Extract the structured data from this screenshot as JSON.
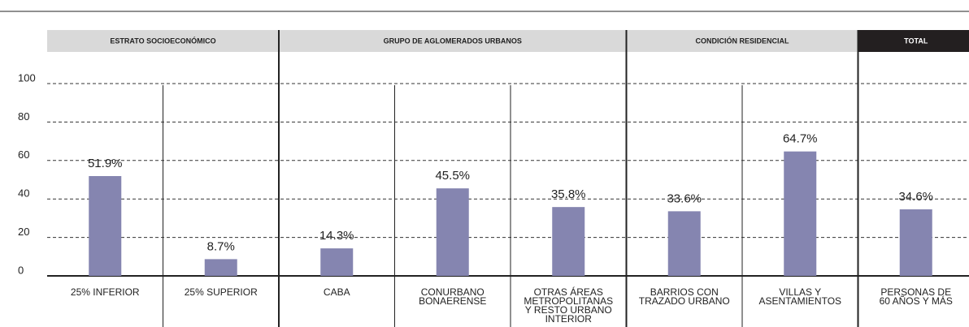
{
  "chart_data": {
    "type": "bar",
    "groups": [
      {
        "name": "ESTRATO SOCIOECONÓMICO",
        "header_color": "#d9d9d9",
        "header_text_color": "#222222",
        "categories": [
          "25% INFERIOR",
          "25% SUPERIOR"
        ],
        "values": [
          51.9,
          8.7
        ],
        "value_labels": [
          "51.9%",
          "8.7%"
        ]
      },
      {
        "name": "GRUPO DE AGLOMERADOS URBANOS",
        "header_color": "#d9d9d9",
        "header_text_color": "#222222",
        "categories": [
          "CABA",
          "CONURBANO\nBONAERENSE",
          "OTRAS ÁREAS\nMETROPOLITANAS\nY RESTO URBANO\nINTERIOR"
        ],
        "values": [
          14.3,
          45.5,
          35.8
        ],
        "value_labels": [
          "14.3%",
          "45.5%",
          "35.8%"
        ]
      },
      {
        "name": "CONDICIÓN RESIDENCIAL",
        "header_color": "#d9d9d9",
        "header_text_color": "#222222",
        "categories": [
          "BARRIOS CON\nTRAZADO URBANO",
          "VILLAS Y\nASENTAMIENTOS"
        ],
        "values": [
          33.6,
          64.7
        ],
        "value_labels": [
          "33.6%",
          "64.7%"
        ]
      },
      {
        "name": "TOTAL",
        "header_color": "#231f20",
        "header_text_color": "#ffffff",
        "categories": [
          "PERSONAS DE\n60 AÑOS Y MÁS"
        ],
        "values": [
          34.6
        ],
        "value_labels": [
          "34.6%"
        ]
      }
    ],
    "color": "#8585b0",
    "ylim": [
      0,
      100
    ],
    "yticks": [
      0,
      20,
      40,
      60,
      80,
      100
    ],
    "grid": true
  }
}
